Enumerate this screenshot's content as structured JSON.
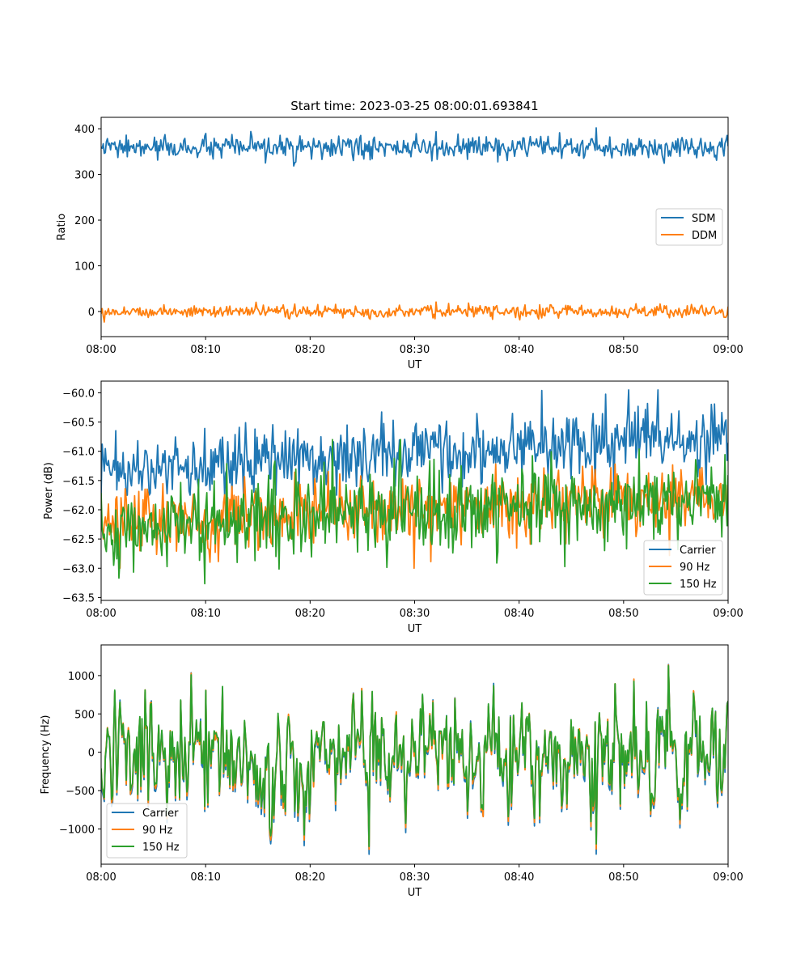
{
  "colors": {
    "blue": "#1f77b4",
    "orange": "#ff7f0e",
    "green": "#2ca02c"
  },
  "figure": {
    "title": "Start time: 2023-03-25 08:00:01.693841"
  },
  "chart_data": [
    {
      "type": "line",
      "title": "Start time: 2023-03-25 08:00:01.693841",
      "xlabel": "UT",
      "ylabel": "Ratio",
      "xlim": [
        "08:00",
        "09:00"
      ],
      "ylim": [
        -55,
        425
      ],
      "x_ticks": [
        "08:00",
        "08:10",
        "08:20",
        "08:30",
        "08:40",
        "08:50",
        "09:00"
      ],
      "y_ticks": [
        0,
        100,
        200,
        300,
        400
      ],
      "y_tick_labels": [
        "0",
        "100",
        "200",
        "300",
        "400"
      ],
      "legend_position": "center-right",
      "grid": false,
      "series": [
        {
          "name": "SDM",
          "color": "#1f77b4",
          "mean": 358,
          "spread": 22,
          "min": 312,
          "max": 402,
          "n_points": 600
        },
        {
          "name": "DDM",
          "color": "#ff7f0e",
          "mean": 0,
          "spread": 12,
          "min": -35,
          "max": 30,
          "n_points": 600
        }
      ]
    },
    {
      "type": "line",
      "xlabel": "UT",
      "ylabel": "Power (dB)",
      "xlim": [
        "08:00",
        "09:00"
      ],
      "ylim": [
        -63.55,
        -59.8
      ],
      "x_ticks": [
        "08:00",
        "08:10",
        "08:20",
        "08:30",
        "08:40",
        "08:50",
        "09:00"
      ],
      "y_ticks": [
        -63.5,
        -63.0,
        -62.5,
        -62.0,
        -61.5,
        -61.0,
        -60.5,
        -60.0
      ],
      "y_tick_labels": [
        "−63.5",
        "−63.0",
        "−62.5",
        "−62.0",
        "−61.5",
        "−61.0",
        "−60.5",
        "−60.0"
      ],
      "legend_position": "lower-right",
      "grid": false,
      "series": [
        {
          "name": "Carrier",
          "color": "#1f77b4",
          "mean_start": -61.3,
          "mean_end": -60.75,
          "spread": 0.5,
          "min": -61.75,
          "max": -59.95,
          "n_points": 600
        },
        {
          "name": "90 Hz",
          "color": "#ff7f0e",
          "mean_start": -62.2,
          "mean_end": -61.75,
          "spread": 0.5,
          "min": -63.0,
          "max": -60.95,
          "n_points": 600
        },
        {
          "name": "150 Hz",
          "color": "#2ca02c",
          "mean_start": -62.3,
          "mean_end": -61.75,
          "spread": 0.6,
          "min": -63.37,
          "max": -60.8,
          "n_points": 600
        }
      ]
    },
    {
      "type": "line",
      "xlabel": "UT",
      "ylabel": "Frequency (Hz)",
      "xlim": [
        "08:00",
        "09:00"
      ],
      "ylim": [
        -1460,
        1400
      ],
      "x_ticks": [
        "08:00",
        "08:10",
        "08:20",
        "08:30",
        "08:40",
        "08:50",
        "09:00"
      ],
      "y_ticks": [
        -1000,
        -500,
        0,
        500,
        1000
      ],
      "y_tick_labels": [
        "−1000",
        "−500",
        "0",
        "500",
        "1000"
      ],
      "legend_position": "lower-left",
      "grid": false,
      "series": [
        {
          "name": "Carrier",
          "color": "#1f77b4",
          "mean": -20,
          "spread": 380,
          "min": -1330,
          "max": 1240,
          "n_points": 600
        },
        {
          "name": "90 Hz",
          "color": "#ff7f0e",
          "mean": 0,
          "spread": 380,
          "min": -1280,
          "max": 1240,
          "n_points": 600
        },
        {
          "name": "150 Hz",
          "color": "#2ca02c",
          "mean": 20,
          "spread": 380,
          "min": -1250,
          "max": 1260,
          "n_points": 600
        }
      ]
    }
  ]
}
